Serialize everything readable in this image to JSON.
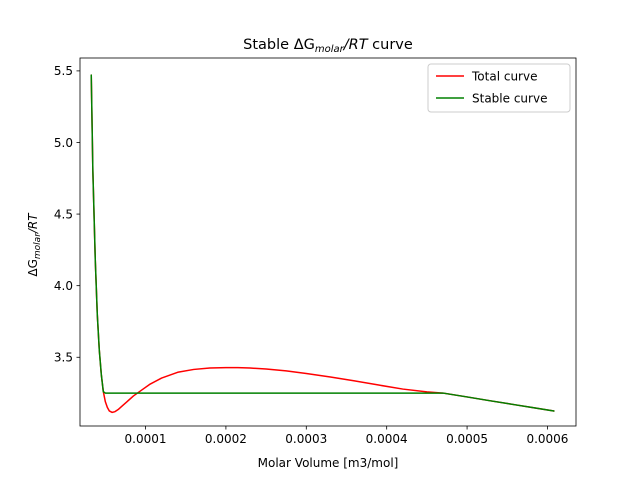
{
  "chart_data": {
    "type": "line",
    "title": {
      "prefix": "Stable ",
      "delta": "ΔG",
      "sub": "molar",
      "suffix": "/RT",
      "tail": " curve"
    },
    "xlabel": "Molar Volume [m3/mol]",
    "ylabel": {
      "delta": "ΔG",
      "sub": "molar",
      "suffix": "/RT"
    },
    "xlim": [
      1.85e-05,
      0.0006355
    ],
    "ylim": [
      3.02,
      5.59
    ],
    "xticks": [
      0.0001,
      0.0002,
      0.0003,
      0.0004,
      0.0005,
      0.0006
    ],
    "xtick_labels": [
      "0.0001",
      "0.0002",
      "0.0003",
      "0.0004",
      "0.0005",
      "0.0006"
    ],
    "yticks": [
      3.5,
      4.0,
      4.5,
      5.0,
      5.5
    ],
    "ytick_labels": [
      "3.5",
      "4.0",
      "4.5",
      "5.0",
      "5.5"
    ],
    "grid": false,
    "legend_position": "upper right",
    "series": [
      {
        "name": "Total curve",
        "color": "#ff0000",
        "x": [
          3.25e-05,
          3.45e-05,
          3.75e-05,
          4e-05,
          4.25e-05,
          4.5e-05,
          4.75e-05,
          5e-05,
          5.25e-05,
          5.5e-05,
          5.85e-05,
          6.2e-05,
          6.6e-05,
          7.1e-05,
          7.7e-05,
          8.5e-05,
          9.5e-05,
          0.000105,
          0.00012,
          0.00014,
          0.00016,
          0.00018,
          0.0002,
          0.000215,
          0.00023,
          0.00025,
          0.000275,
          0.0003,
          0.00033,
          0.00036,
          0.00039,
          0.00042,
          0.00045,
          0.00047,
          0.0005,
          0.00053,
          0.00056,
          0.00058,
          0.000608
        ],
        "y": [
          5.47,
          4.8,
          4.18,
          3.8,
          3.55,
          3.38,
          3.26,
          3.19,
          3.15,
          3.125,
          3.115,
          3.12,
          3.135,
          3.16,
          3.19,
          3.23,
          3.27,
          3.31,
          3.355,
          3.395,
          3.415,
          3.425,
          3.428,
          3.428,
          3.425,
          3.418,
          3.405,
          3.387,
          3.362,
          3.335,
          3.306,
          3.278,
          3.258,
          3.25,
          3.223,
          3.195,
          3.168,
          3.15,
          3.125
        ]
      },
      {
        "name": "Stable curve",
        "color": "#008000",
        "x": [
          3.25e-05,
          3.45e-05,
          3.75e-05,
          4e-05,
          4.25e-05,
          4.5e-05,
          4.75e-05,
          5e-05,
          0.0001,
          0.0002,
          0.0003,
          0.0004,
          0.00047,
          0.0005,
          0.00053,
          0.00056,
          0.00058,
          0.000608
        ],
        "y": [
          5.47,
          4.8,
          4.18,
          3.8,
          3.55,
          3.38,
          3.26,
          3.25,
          3.25,
          3.25,
          3.25,
          3.25,
          3.25,
          3.223,
          3.195,
          3.168,
          3.15,
          3.125
        ]
      }
    ]
  }
}
